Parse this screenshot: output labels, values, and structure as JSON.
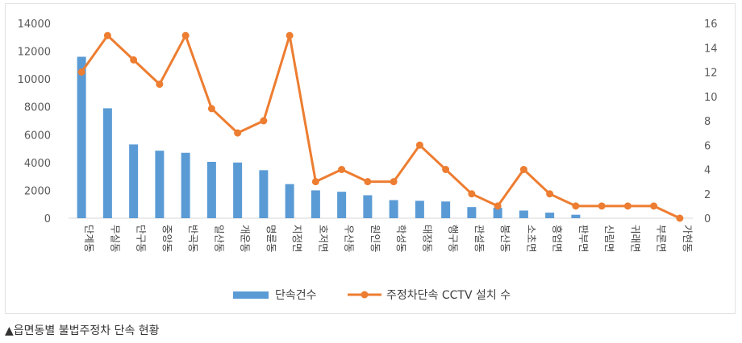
{
  "caption": "▲읍면동별 불법주정차 단속 현황",
  "chart_data": {
    "type": "bar+line",
    "title": "",
    "categories": [
      "단계동",
      "무실동",
      "단구동",
      "중앙동",
      "반곡동",
      "일산동",
      "개운동",
      "명륜동",
      "지정면",
      "호저면",
      "우산동",
      "원인동",
      "학성동",
      "태장동",
      "행구동",
      "관설동",
      "봉산동",
      "소초면",
      "흥업면",
      "판부면",
      "신림면",
      "귀래면",
      "부론면",
      "가현동"
    ],
    "categories_display": [
      "단계동",
      "무실동",
      "단구동",
      "중앙동",
      "반곡동",
      "일산동",
      "개운동",
      "명륜동",
      "지정면",
      "호저면",
      "우산동",
      "원인동",
      "학성동",
      "태장동",
      "행구동",
      "관설동",
      "봉산동",
      "소초면",
      "흥업면",
      "판부면",
      "신림면",
      "귀래면",
      "부론면",
      "가현동"
    ],
    "series": [
      {
        "name": "단속건수",
        "axis": "left",
        "type": "bar",
        "color": "#5b9bd5",
        "values": [
          11600,
          7900,
          5300,
          4850,
          4700,
          4050,
          4000,
          3450,
          2450,
          2000,
          1900,
          1650,
          1300,
          1250,
          1200,
          800,
          750,
          550,
          400,
          250,
          0,
          0,
          0,
          0
        ]
      },
      {
        "name": "주정차단속 CCTV 설치 수",
        "axis": "right",
        "type": "line",
        "color": "#ed7d31",
        "values": [
          12,
          15,
          13,
          11,
          15,
          9,
          7,
          8,
          15,
          3,
          4,
          3,
          3,
          6,
          4,
          2,
          1,
          4,
          2,
          1,
          1,
          1,
          1,
          0
        ]
      }
    ],
    "y_left": {
      "min": 0,
      "max": 14000,
      "ticks": [
        "0",
        "2000",
        "4000",
        "6000",
        "8000",
        "10000",
        "12000",
        "14000"
      ]
    },
    "y_right": {
      "min": 0,
      "max": 16,
      "ticks": [
        "0",
        "2",
        "4",
        "6",
        "8",
        "10",
        "12",
        "14",
        "16"
      ]
    },
    "grid": false,
    "legend": "bottom"
  }
}
